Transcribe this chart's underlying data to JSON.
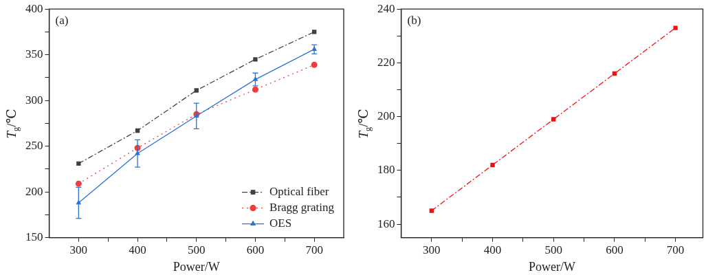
{
  "chart_data": [
    {
      "type": "line",
      "xlabel": "Power/W",
      "ylabel": "T$_{g}$/℃",
      "annotations": [
        "(a)"
      ],
      "x": [
        300,
        400,
        500,
        600,
        700
      ],
      "series": [
        {
          "name": "Optical fiber",
          "color": "#404040",
          "values": [
            231,
            267,
            311,
            345,
            375
          ],
          "marker": "square",
          "line_style": "dashed"
        },
        {
          "name": "Bragg grating",
          "color": "#f03c3c",
          "values": [
            209,
            248,
            285,
            312,
            339
          ],
          "marker": "circle",
          "line_style": "dotted"
        },
        {
          "name": "OES",
          "color": "#2a72d6",
          "values": [
            188,
            242,
            283,
            323,
            356
          ],
          "errors": [
            17,
            15,
            14,
            7,
            5
          ],
          "marker": "triangle",
          "line_style": "solid"
        }
      ],
      "xlim": [
        250,
        750
      ],
      "xticks": [
        300,
        {
          "value": 350,
          "label": null
        },
        400,
        {
          "value": 450,
          "label": null
        },
        500,
        {
          "value": 550,
          "label": null
        },
        600,
        {
          "value": 650,
          "label": null
        },
        700
      ],
      "ylim": [
        150,
        400
      ],
      "yticks": [
        150,
        {
          "value": 175,
          "label": null
        },
        200,
        {
          "value": 225,
          "label": null
        },
        250,
        {
          "value": 275,
          "label": null
        },
        300,
        {
          "value": 325,
          "label": null
        },
        350,
        {
          "value": 375,
          "label": null
        },
        400
      ],
      "grid": false,
      "legend": "bottom right"
    },
    {
      "type": "line",
      "xlabel": "Power/W",
      "ylabel": "T$_{g}$/℃",
      "annotations": [
        "(b)"
      ],
      "x": [
        300,
        400,
        500,
        600,
        700
      ],
      "series": [
        {
          "color": "#f01010",
          "values": [
            165,
            182,
            199,
            216,
            233
          ],
          "marker": "square",
          "line_style": "dashed"
        }
      ],
      "xlim": [
        250,
        745
      ],
      "xticks": [
        300,
        {
          "value": 350,
          "label": null
        },
        400,
        {
          "value": 450,
          "label": null
        },
        500,
        {
          "value": 550,
          "label": null
        },
        600,
        {
          "value": 650,
          "label": null
        },
        700
      ],
      "ylim": [
        155,
        240
      ],
      "yticks": [
        160,
        {
          "value": 170,
          "label": null
        },
        180,
        {
          "value": 190,
          "label": null
        },
        200,
        {
          "value": 210,
          "label": null
        },
        220,
        {
          "value": 230,
          "label": null
        },
        240
      ],
      "grid": false,
      "legend": false
    }
  ]
}
